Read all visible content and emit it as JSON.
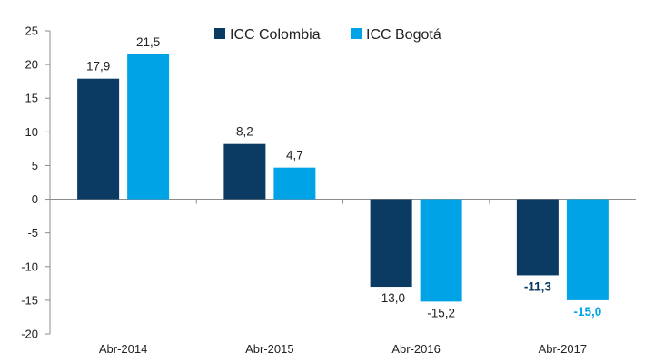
{
  "chart_data": {
    "type": "bar",
    "categories": [
      "Abr-2014",
      "Abr-2015",
      "Abr-2016",
      "Abr-2017"
    ],
    "series": [
      {
        "name": "ICC Colombia",
        "color": "#0b3a63",
        "values": [
          17.9,
          8.2,
          -13.0,
          -11.3
        ],
        "labels": [
          "17,9",
          "8,2",
          "-13,0",
          "-11,3"
        ],
        "bold_label": [
          false,
          false,
          false,
          true
        ],
        "label_color": [
          "#222222",
          "#222222",
          "#222222",
          "#0b3a63"
        ]
      },
      {
        "name": "ICC Bogotá",
        "color": "#00a3e6",
        "values": [
          21.5,
          4.7,
          -15.2,
          -15.0
        ],
        "labels": [
          "21,5",
          "4,7",
          "-15,2",
          "-15,0"
        ],
        "bold_label": [
          false,
          false,
          false,
          true
        ],
        "label_color": [
          "#222222",
          "#222222",
          "#222222",
          "#00a3e6"
        ]
      }
    ],
    "ylim": [
      -20,
      25
    ],
    "yticks": [
      "25",
      "20",
      "15",
      "10",
      "5",
      "0",
      "-5",
      "-10",
      "-15",
      "-20"
    ],
    "ytick_values": [
      25,
      20,
      15,
      10,
      5,
      0,
      -5,
      -10,
      -15,
      -20
    ],
    "title": "",
    "xlabel": "",
    "ylabel": "",
    "legend_position": "top-center",
    "grid": false
  }
}
